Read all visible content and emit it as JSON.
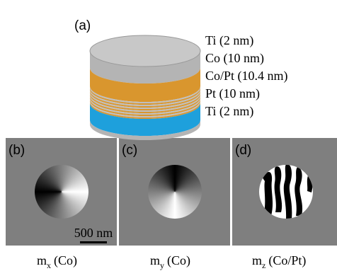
{
  "panel_a": {
    "label": "(a)",
    "layers": [
      "Ti (2 nm)",
      "Co (10 nm)",
      "Co/Pt (10.4 nm)",
      "Pt (10 nm)",
      "Ti (2 nm)"
    ]
  },
  "panels": [
    {
      "label": "(b)",
      "caption": {
        "symbol": "m",
        "subscript": "x",
        "suffix": "(Co)"
      },
      "scale_bar": "500 nm"
    },
    {
      "label": "(c)",
      "caption": {
        "symbol": "m",
        "subscript": "y",
        "suffix": "(Co)"
      }
    },
    {
      "label": "(d)",
      "caption": {
        "symbol": "m",
        "subscript": "z",
        "suffix": "(Co/Pt)"
      }
    }
  ]
}
